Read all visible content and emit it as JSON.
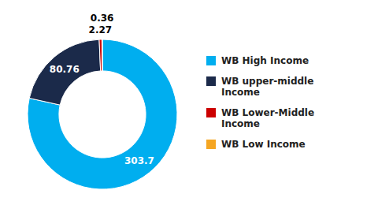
{
  "chart_data": {
    "type": "donut",
    "categories": [
      "WB High Income",
      "WB upper-middle\nIncome",
      "WB Lower-Middle\nIncome",
      "WB Low Income"
    ],
    "values": [
      303.7,
      80.76,
      2.27,
      0.36
    ],
    "colors": [
      "#00AEEF",
      "#1B2A4A",
      "#CC0000",
      "#F5A623"
    ],
    "data_labels": true,
    "legend": "right"
  }
}
